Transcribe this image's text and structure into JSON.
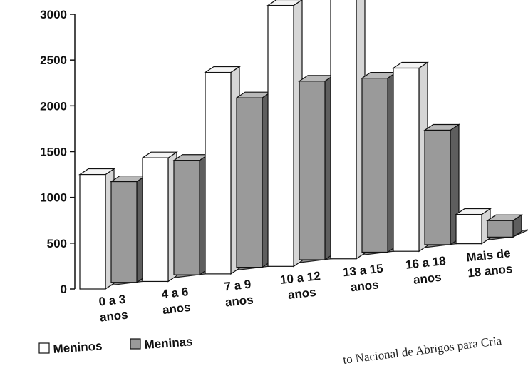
{
  "chart_data": {
    "type": "bar",
    "categories": [
      [
        "0 a 3",
        "anos"
      ],
      [
        "4 a 6",
        "anos"
      ],
      [
        "7 a 9",
        "anos"
      ],
      [
        "10 a 12",
        "anos"
      ],
      [
        "13 a 15",
        "anos"
      ],
      [
        "16 a 18",
        "anos"
      ],
      [
        "Mais de",
        "18 anos"
      ]
    ],
    "series": [
      {
        "name": "Meninos",
        "values": [
          1250,
          1350,
          2200,
          2850,
          2850,
          2000,
          320
        ],
        "color": "#ffffff"
      },
      {
        "name": "Meninas",
        "values": [
          1100,
          1250,
          1850,
          1950,
          1900,
          1250,
          180
        ],
        "color": "#9a9a9a"
      }
    ],
    "ylim": [
      0,
      3000
    ],
    "yticks": [
      "0",
      "500",
      "1000",
      "1500",
      "2000",
      "2500",
      "3000"
    ],
    "legend_position": "bottom-left",
    "grid": false
  },
  "footer": {
    "text": "to Nacional de Abrigos para Cria"
  }
}
